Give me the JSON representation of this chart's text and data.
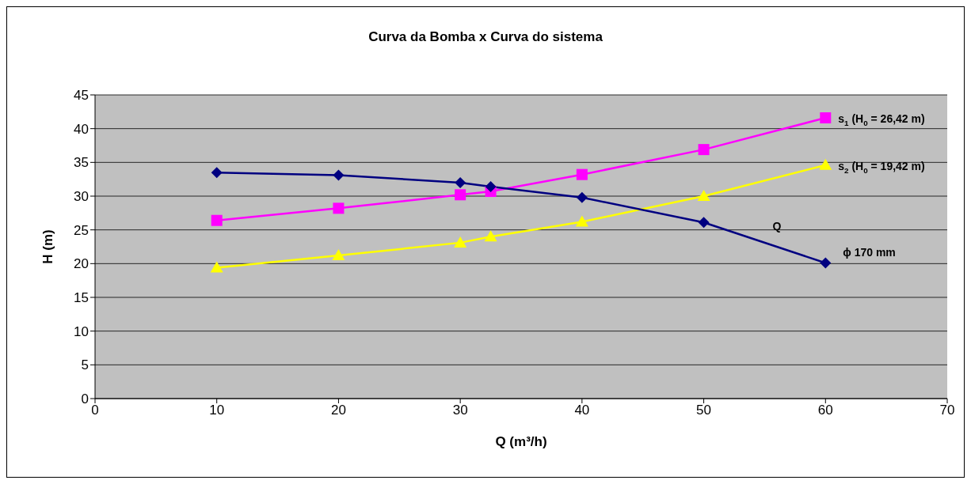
{
  "chart_data": {
    "type": "line",
    "title": "Curva da Bomba x Curva do sistema",
    "xlabel": "Q (m³/h)",
    "ylabel": "H (m)",
    "x": [
      10,
      20,
      30,
      32.5,
      40,
      50,
      60
    ],
    "series": [
      {
        "color": "#000080",
        "marker": "diamond",
        "values": [
          33.5,
          33.1,
          32.0,
          31.4,
          29.8,
          26.1,
          20.1
        ]
      },
      {
        "name": "s$_{1}$ (H$_{0}$ = 26,42 m)",
        "color": "#ff00ff",
        "marker": "square",
        "values": [
          26.4,
          28.2,
          30.2,
          30.7,
          33.2,
          36.9,
          41.6
        ]
      },
      {
        "name": "s$_{2}$ (H$_{0}$ = 19,42 m)",
        "color": "#ffff00",
        "marker": "triangle",
        "values": [
          19.4,
          21.2,
          23.1,
          24.0,
          26.2,
          30.0,
          34.6
        ]
      }
    ],
    "annotations": [
      "Q",
      {
        "text": "ϕ 170 mm",
        "x": 60,
        "y": 20.1
      }
    ],
    "xlim": [
      0,
      70
    ],
    "xticks": [
      0,
      10,
      20,
      30,
      40,
      50,
      60,
      70
    ],
    "ylim": [
      0,
      45
    ],
    "yticks": [
      0,
      5,
      10,
      15,
      20,
      25,
      30,
      35,
      40,
      45
    ],
    "grid": "y",
    "line_style": "solid"
  }
}
